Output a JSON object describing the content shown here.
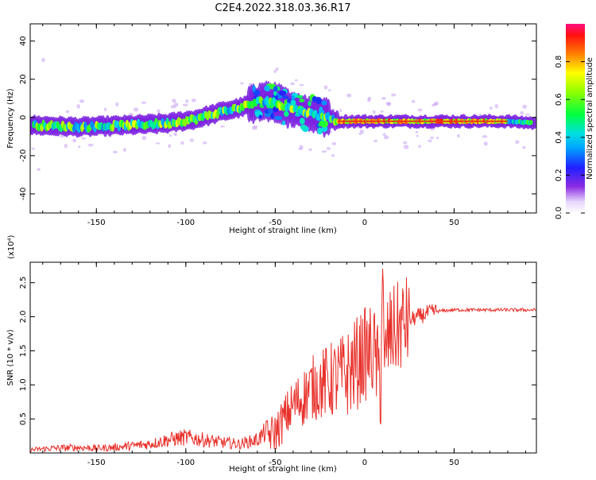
{
  "title": "C2E4.2022.318.03.36.R17",
  "colors": {
    "snr_line": "#e8302a",
    "spectrum_base": "#7a1ee0"
  },
  "colorbar": {
    "label": "Normalized spectral amplitude",
    "ticks": [
      0.0,
      0.2,
      0.4,
      0.6,
      0.8
    ],
    "tick_labels": [
      "0.0",
      "0.2",
      "0.4",
      "0.6",
      "0.8"
    ],
    "range": [
      0,
      1
    ]
  },
  "chart_data": [
    {
      "type": "heatmap",
      "xlabel": "Height of straight line (km)",
      "ylabel": "Frequency (Hz)",
      "xlim": [
        -187,
        96
      ],
      "ylim": [
        -50,
        49
      ],
      "xticks": [
        -150,
        -100,
        -50,
        0,
        50
      ],
      "xtick_labels": [
        "-150",
        "-100",
        "-50",
        "0",
        "50"
      ],
      "yticks": [
        -40,
        -20,
        0,
        20,
        40
      ],
      "ytick_labels": [
        "-40",
        "-20",
        "0",
        "20",
        "40"
      ],
      "ridge": {
        "x": [
          -187,
          -160,
          -130,
          -110,
          -95,
          -80,
          -70,
          -60,
          -55,
          -45,
          -35,
          -25,
          -20,
          -15,
          0,
          20,
          40,
          60,
          80,
          96
        ],
        "y": [
          -4,
          -5,
          -4,
          -3,
          -1,
          3,
          5,
          8,
          9,
          6,
          3,
          1,
          0,
          -2,
          -2,
          -2,
          -2,
          -2,
          -2,
          -3
        ]
      }
    },
    {
      "type": "line",
      "xlabel": "Height of straight line (km)",
      "ylabel": "SNR (10 * v/v)",
      "y_multiplier": "(x10⁴)",
      "xlim": [
        -187,
        96
      ],
      "ylim": [
        0,
        2.8
      ],
      "xticks": [
        -150,
        -100,
        -50,
        0,
        50
      ],
      "xtick_labels": [
        "-150",
        "-100",
        "-50",
        "0",
        "50"
      ],
      "yticks": [
        0.5,
        1.0,
        1.5,
        2.0,
        2.5
      ],
      "ytick_labels": [
        "0.5",
        "1.0",
        "1.5",
        "2.0",
        "2.5"
      ],
      "series": [
        {
          "x": [
            -187,
            -175,
            -160,
            -150,
            -140,
            -130,
            -120,
            -110,
            -100,
            -90,
            -80,
            -70,
            -60,
            -55,
            -50,
            -45,
            -40,
            -35,
            -30,
            -25,
            -20,
            -15,
            -10,
            -5,
            0,
            5,
            9,
            10,
            11,
            12,
            15,
            20,
            25,
            30,
            35,
            40,
            50,
            60,
            70,
            80,
            90,
            96
          ],
          "y": [
            0.03,
            0.05,
            0.06,
            0.05,
            0.06,
            0.08,
            0.1,
            0.15,
            0.18,
            0.15,
            0.12,
            0.1,
            0.15,
            0.25,
            0.3,
            0.5,
            0.7,
            0.8,
            0.95,
            1.0,
            1.05,
            1.1,
            1.15,
            1.3,
            1.45,
            1.5,
            1.0,
            2.8,
            0.9,
            1.6,
            1.75,
            1.85,
            1.95,
            2.0,
            2.05,
            2.08,
            2.1,
            2.1,
            2.1,
            2.1,
            2.1,
            2.1
          ]
        }
      ]
    }
  ]
}
